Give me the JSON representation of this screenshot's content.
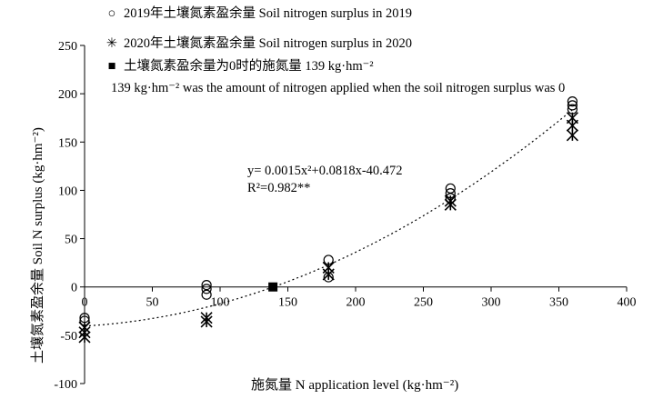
{
  "chart_data": {
    "type": "scatter",
    "xlabel": "施氮量 N application level (kg·hm⁻²)",
    "ylabel": "土壤氮素盈余量 Soil N surplus (kg·hm⁻²)",
    "xlim": [
      0,
      400
    ],
    "ylim": [
      -100,
      250
    ],
    "xticks": [
      0,
      50,
      100,
      150,
      200,
      250,
      300,
      350,
      400
    ],
    "yticks": [
      -100,
      -50,
      0,
      50,
      100,
      150,
      200,
      250
    ],
    "grid": false,
    "legend_position": "top-left",
    "series": [
      {
        "name": "2019年土壤氮素盈余量 Soil nitrogen surplus in 2019",
        "marker": "circle",
        "points": [
          [
            0,
            -32
          ],
          [
            0,
            -35
          ],
          [
            90,
            2
          ],
          [
            90,
            -2
          ],
          [
            90,
            -8
          ],
          [
            180,
            28
          ],
          [
            180,
            10
          ],
          [
            270,
            102
          ],
          [
            270,
            97
          ],
          [
            270,
            92
          ],
          [
            360,
            192
          ],
          [
            360,
            188
          ],
          [
            360,
            184
          ]
        ]
      },
      {
        "name": "2020年土壤氮素盈余量 Soil nitrogen surplus in 2020",
        "marker": "star",
        "points": [
          [
            0,
            -42
          ],
          [
            0,
            -47
          ],
          [
            0,
            -52
          ],
          [
            90,
            -32
          ],
          [
            90,
            -36
          ],
          [
            180,
            20
          ],
          [
            180,
            13
          ],
          [
            270,
            89
          ],
          [
            270,
            85
          ],
          [
            360,
            175
          ],
          [
            360,
            167
          ],
          [
            360,
            157
          ]
        ]
      },
      {
        "name": "土壤氮素盈余量为0时的施氮量 139 kg·hm⁻²",
        "marker": "square",
        "points": [
          [
            139,
            0
          ]
        ]
      }
    ],
    "fit": {
      "type": "polynomial",
      "coefficients": [
        0.0015,
        0.0818,
        -40.472
      ],
      "x_range": [
        0,
        360
      ],
      "style": "dotted"
    },
    "annotations": {
      "equation": "y= 0.0015x²+0.0818x-40.472",
      "r2": "R²=0.982**"
    }
  },
  "legend": {
    "item1": "2019年土壤氮素盈余量 Soil nitrogen surplus in 2019",
    "item2": "2020年土壤氮素盈余量 Soil nitrogen surplus in 2020",
    "item3": "土壤氮素盈余量为0时的施氮量 139 kg·hm⁻²",
    "item3_note": "139 kg·hm⁻² was the amount of nitrogen applied when the soil nitrogen surplus was 0"
  }
}
